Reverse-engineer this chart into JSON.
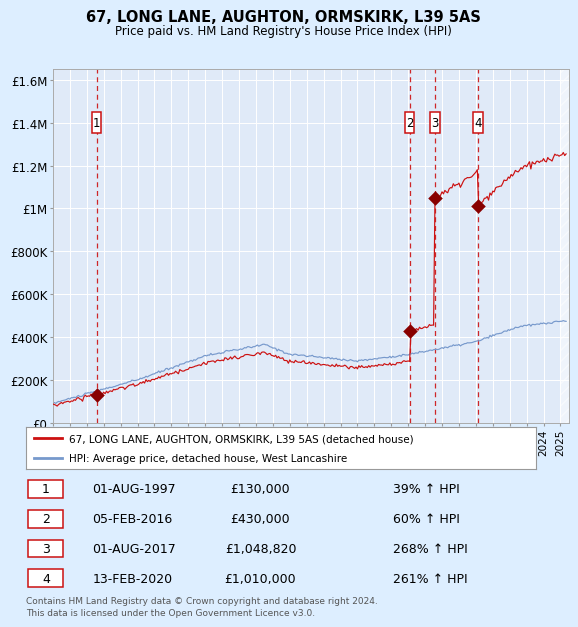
{
  "title": "67, LONG LANE, AUGHTON, ORMSKIRK, L39 5AS",
  "subtitle": "Price paid vs. HM Land Registry's House Price Index (HPI)",
  "legend_line1": "67, LONG LANE, AUGHTON, ORMSKIRK, L39 5AS (detached house)",
  "legend_line2": "HPI: Average price, detached house, West Lancashire",
  "table_rows": [
    {
      "num": 1,
      "date": "01-AUG-1997",
      "price": "£130,000",
      "pct": "39% ↑ HPI"
    },
    {
      "num": 2,
      "date": "05-FEB-2016",
      "price": "£430,000",
      "pct": "60% ↑ HPI"
    },
    {
      "num": 3,
      "date": "01-AUG-2017",
      "price": "£1,048,820",
      "pct": "268% ↑ HPI"
    },
    {
      "num": 4,
      "date": "13-FEB-2020",
      "price": "£1,010,000",
      "pct": "261% ↑ HPI"
    }
  ],
  "footer": "Contains HM Land Registry data © Crown copyright and database right 2024.\nThis data is licensed under the Open Government Licence v3.0.",
  "sale_dates_num": [
    1997.583,
    2016.089,
    2017.583,
    2020.117
  ],
  "sale_prices": [
    130000,
    430000,
    1048820,
    1010000
  ],
  "ylim": [
    0,
    1650000
  ],
  "xlim_start": 1995.0,
  "xlim_end": 2025.5,
  "hpi_color": "#7799cc",
  "price_color": "#cc1111",
  "bg_color": "#ddeeff",
  "plot_bg": "#e0eaf8",
  "grid_color": "#ffffff",
  "vline_color": "#cc1111",
  "marker_color": "#880000",
  "label_nums": [
    1,
    2,
    3,
    4
  ]
}
